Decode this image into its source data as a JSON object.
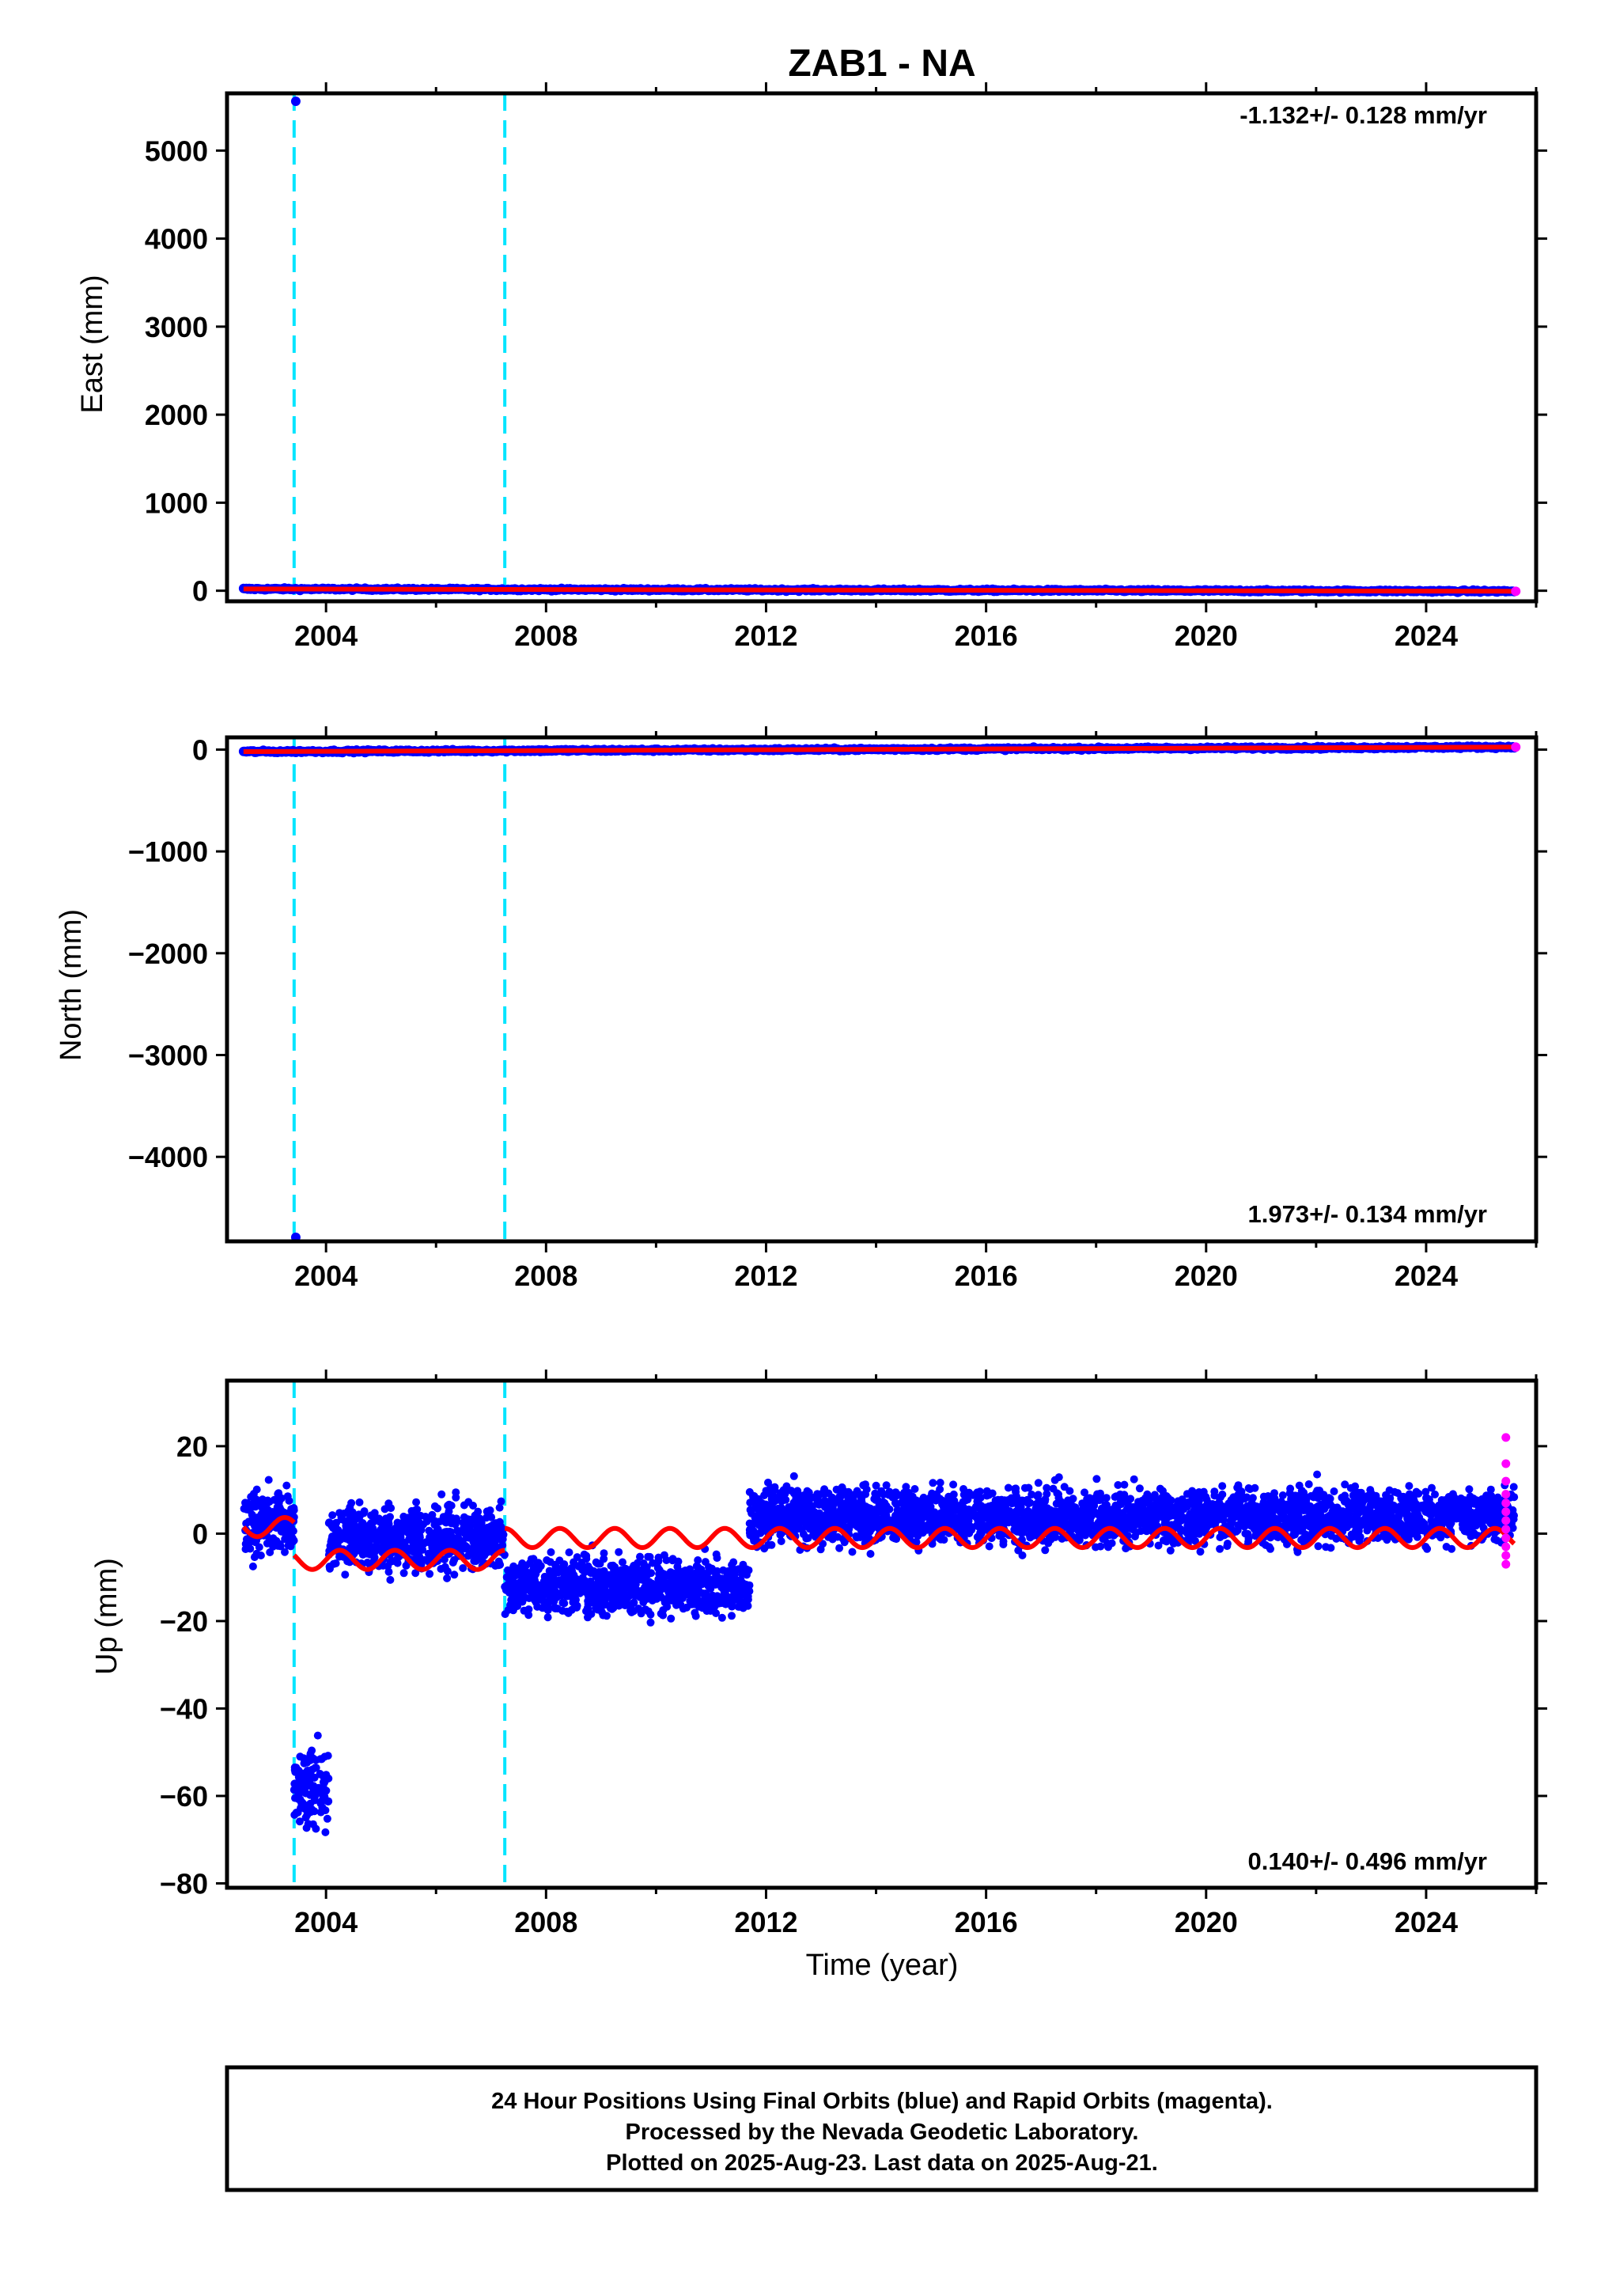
{
  "title": "ZAB1 - NA",
  "colors": {
    "final_orbits": "#0000ff",
    "rapid_orbits": "#ff00ff",
    "model": "#ff0000",
    "offsets": "#00e5ff",
    "frame": "#000000"
  },
  "chart_data": [
    {
      "type": "scatter",
      "name": "east",
      "ylabel": "East (mm)",
      "xlabel": "",
      "xlim": [
        2002.2,
        2026.0
      ],
      "ylim": [
        -120,
        5650
      ],
      "xticks": [
        2004,
        2008,
        2012,
        2016,
        2020,
        2024
      ],
      "xtick_labels": [
        "2004",
        "2008",
        "2012",
        "2016",
        "2020",
        "2024"
      ],
      "yticks": [
        0,
        1000,
        2000,
        3000,
        4000,
        5000
      ],
      "ytick_labels": [
        "0",
        "1000",
        "2000",
        "3000",
        "4000",
        "5000"
      ],
      "rate_label": "-1.132+/- 0.128 mm/yr",
      "offsets": [
        2003.42,
        2007.25
      ],
      "outliers": [
        {
          "x": 2003.45,
          "y": 5560
        }
      ],
      "series_start": 2002.5,
      "series_end": 2025.6,
      "trend_start": 20,
      "trend_end": -6
    },
    {
      "type": "scatter",
      "name": "north",
      "ylabel": "North (mm)",
      "xlabel": "",
      "xlim": [
        2002.2,
        2026.0
      ],
      "ylim": [
        -4830,
        120
      ],
      "xticks": [
        2004,
        2008,
        2012,
        2016,
        2020,
        2024
      ],
      "xtick_labels": [
        "2004",
        "2008",
        "2012",
        "2016",
        "2020",
        "2024"
      ],
      "yticks": [
        -4000,
        -3000,
        -2000,
        -1000,
        0
      ],
      "ytick_labels": [
        "−4000",
        "−3000",
        "−2000",
        "−1000",
        "0"
      ],
      "rate_label": "1.973+/- 0.134 mm/yr",
      "offsets": [
        2003.42,
        2007.25
      ],
      "outliers": [
        {
          "x": 2003.45,
          "y": -4790
        }
      ],
      "series_start": 2002.5,
      "series_end": 2025.6,
      "trend_start": -20,
      "trend_end": 25
    },
    {
      "type": "scatter",
      "name": "up",
      "ylabel": "Up (mm)",
      "xlabel": "Time (year)",
      "xlim": [
        2002.2,
        2026.0
      ],
      "ylim": [
        -81,
        35
      ],
      "xticks": [
        2004,
        2008,
        2012,
        2016,
        2020,
        2024
      ],
      "xtick_labels": [
        "2004",
        "2008",
        "2012",
        "2016",
        "2020",
        "2024"
      ],
      "yticks": [
        -80,
        -60,
        -40,
        -20,
        0,
        20
      ],
      "ytick_labels": [
        "−80",
        "−60",
        "−40",
        "−20",
        "0",
        "20"
      ],
      "rate_label": "0.140+/- 0.496 mm/yr",
      "offsets": [
        2003.42,
        2007.25
      ],
      "segments": [
        {
          "x0": 2002.5,
          "x1": 2003.42,
          "mean": 2,
          "spread": 7
        },
        {
          "x0": 2003.42,
          "x1": 2004.05,
          "mean": -58,
          "spread": 8
        },
        {
          "x0": 2004.05,
          "x1": 2007.25,
          "mean": -1,
          "spread": 7
        },
        {
          "x0": 2007.25,
          "x1": 2011.7,
          "mean": -12,
          "spread": 6
        },
        {
          "x0": 2011.7,
          "x1": 2025.6,
          "mean": 4,
          "spread": 6
        }
      ],
      "model_segments": [
        {
          "x0": 2002.5,
          "x1": 2003.42,
          "level": 1.5
        },
        {
          "x0": 2003.42,
          "x1": 2007.25,
          "level": -6
        },
        {
          "x0": 2007.25,
          "x1": 2025.6,
          "level": -1
        }
      ],
      "rapid_points": [
        {
          "x": 2025.45,
          "y": 22
        },
        {
          "x": 2025.45,
          "y": 16
        },
        {
          "x": 2025.45,
          "y": 12
        },
        {
          "x": 2025.45,
          "y": 9
        },
        {
          "x": 2025.45,
          "y": 7
        },
        {
          "x": 2025.45,
          "y": 5
        },
        {
          "x": 2025.45,
          "y": 3
        },
        {
          "x": 2025.45,
          "y": 1
        },
        {
          "x": 2025.45,
          "y": -1
        },
        {
          "x": 2025.45,
          "y": -3
        },
        {
          "x": 2025.45,
          "y": -5
        },
        {
          "x": 2025.45,
          "y": -7
        }
      ]
    }
  ],
  "footer": {
    "line1": "24 Hour Positions Using Final Orbits (blue) and Rapid Orbits (magenta).",
    "line2": "Processed by the Nevada Geodetic Laboratory.",
    "line3": "Plotted on 2025-Aug-23. Last data on 2025-Aug-21."
  }
}
